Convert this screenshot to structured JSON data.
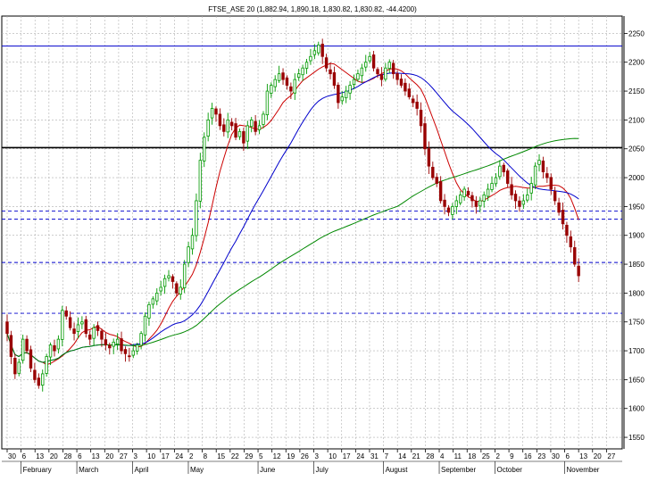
{
  "chart_data": {
    "type": "candlestick",
    "title": "FTSE_ASE 20 (1,882.94, 1,890.18, 1,830.82, 1,830.82, -44.4200)",
    "y_ticks": [
      1550,
      1600,
      1650,
      1700,
      1750,
      1800,
      1850,
      1900,
      1950,
      2000,
      2050,
      2100,
      2150,
      2200,
      2250
    ],
    "y_tick_labels": [
      "1550",
      "1600",
      "1650",
      "1700",
      "1750",
      "1800",
      "1850",
      "1900",
      "1950",
      "2000",
      "2050",
      "2100",
      "2150",
      "2200",
      "2250"
    ],
    "ylim": [
      1530,
      2280
    ],
    "x_day_labels": [
      "30",
      "6",
      "13",
      "20",
      "28",
      "6",
      "13",
      "20",
      "27",
      "3",
      "10",
      "17",
      "24",
      "2",
      "8",
      "15",
      "22",
      "29",
      "5",
      "12",
      "19",
      "26",
      "3",
      "10",
      "17",
      "24",
      "31",
      "7",
      "14",
      "21",
      "28",
      "4",
      "11",
      "18",
      "25",
      "2",
      "9",
      "16",
      "23",
      "30",
      "6",
      "13",
      "20",
      "27"
    ],
    "month_labels": [
      {
        "label": "February",
        "week": 1
      },
      {
        "label": "March",
        "week": 5
      },
      {
        "label": "April",
        "week": 9
      },
      {
        "label": "May",
        "week": 13
      },
      {
        "label": "June",
        "week": 18
      },
      {
        "label": "July",
        "week": 22
      },
      {
        "label": "August",
        "week": 27
      },
      {
        "label": "September",
        "week": 31
      },
      {
        "label": "October",
        "week": 35
      },
      {
        "label": "November",
        "week": 40
      }
    ],
    "horizontal_lines": [
      {
        "value": 2228,
        "color": "#0000cc",
        "style": "solid"
      },
      {
        "value": 2052,
        "color": "#000000",
        "style": "solid"
      },
      {
        "value": 1942,
        "color": "#0000cc",
        "style": "dashed"
      },
      {
        "value": 1928,
        "color": "#0000cc",
        "style": "dashed"
      },
      {
        "value": 1853,
        "color": "#0000cc",
        "style": "dashed"
      },
      {
        "value": 1765,
        "color": "#0000cc",
        "style": "dashed"
      }
    ],
    "close_series": [
      1730,
      1690,
      1660,
      1680,
      1720,
      1700,
      1670,
      1650,
      1640,
      1660,
      1690,
      1710,
      1700,
      1720,
      1770,
      1760,
      1740,
      1730,
      1745,
      1750,
      1730,
      1720,
      1740,
      1735,
      1720,
      1710,
      1705,
      1715,
      1720,
      1700,
      1695,
      1690,
      1700,
      1710,
      1730,
      1760,
      1780,
      1790,
      1800,
      1810,
      1825,
      1830,
      1820,
      1800,
      1810,
      1850,
      1880,
      1900,
      1960,
      2030,
      2070,
      2100,
      2120,
      2110,
      2090,
      2080,
      2100,
      2090,
      2070,
      2080,
      2060,
      2090,
      2100,
      2080,
      2090,
      2110,
      2150,
      2160,
      2170,
      2180,
      2170,
      2160,
      2150,
      2170,
      2180,
      2190,
      2200,
      2210,
      2220,
      2230,
      2210,
      2190,
      2180,
      2160,
      2130,
      2140,
      2150,
      2160,
      2170,
      2180,
      2190,
      2200,
      2210,
      2190,
      2180,
      2170,
      2190,
      2200,
      2180,
      2170,
      2160,
      2150,
      2140,
      2130,
      2120,
      2090,
      2050,
      2020,
      2000,
      1990,
      1960,
      1950,
      1940,
      1950,
      1960,
      1970,
      1980,
      1970,
      1960,
      1950,
      1960,
      1970,
      1980,
      1990,
      2000,
      2020,
      2010,
      1990,
      1970,
      1960,
      1950,
      1960,
      1970,
      1990,
      2020,
      2030,
      2010,
      2000,
      1980,
      1960,
      1940,
      1920,
      1900,
      1880,
      1850,
      1830
    ],
    "moving_averages": [
      {
        "period": 10,
        "color": "#cc0000"
      },
      {
        "period": 30,
        "color": "#0000cc"
      },
      {
        "period": 100,
        "color": "#008800"
      }
    ]
  }
}
